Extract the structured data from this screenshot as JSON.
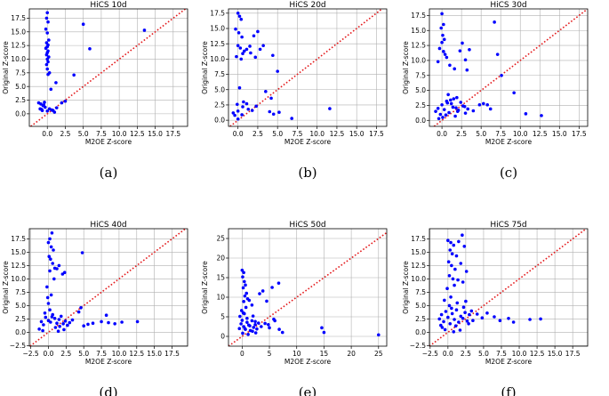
{
  "chart_data": [
    {
      "type": "scatter",
      "title": "HiCS 10d",
      "caption": "(a)",
      "xlabel": "M2OE Z-score",
      "ylabel": "Original Z-score",
      "xlim": [
        -2.5,
        19.5
      ],
      "ylim": [
        -2.3,
        19.2
      ],
      "xticks": [
        0.0,
        2.5,
        5.0,
        7.5,
        10.0,
        12.5,
        15.0,
        17.5
      ],
      "xtick_labels": [
        "0.0",
        "2.5",
        "5.0",
        "7.5",
        "10.0",
        "12.5",
        "15.0",
        "17.5"
      ],
      "yticks": [
        0.0,
        2.5,
        5.0,
        7.5,
        10.0,
        12.5,
        15.0,
        17.5
      ],
      "ytick_labels": [
        "0.0",
        "2.5",
        "5.0",
        "7.5",
        "10.0",
        "12.5",
        "15.0",
        "17.5"
      ],
      "grid": true,
      "reference_line": "y = x",
      "x": [
        0.0,
        -0.1,
        0.1,
        -0.2,
        0.0,
        0.2,
        -0.1,
        0.1,
        0.0,
        -0.2,
        0.1,
        0.0,
        -0.1,
        0.2,
        0.0,
        0.1,
        -0.1,
        0.0,
        0.3,
        0.1,
        0.5,
        1.2,
        3.7,
        5.0,
        5.9,
        13.5,
        -1.2,
        -0.9,
        -0.6,
        -0.4,
        -1.0,
        -0.7,
        -0.3,
        0.0,
        0.3,
        0.8,
        1.3,
        2.0,
        2.5,
        1.0,
        -0.8,
        -0.5,
        0.6
      ],
      "y": [
        18.5,
        17.5,
        16.8,
        15.5,
        14.8,
        13.5,
        13.0,
        12.6,
        12.3,
        12.0,
        11.5,
        11.2,
        10.8,
        10.4,
        10.0,
        9.5,
        9.0,
        8.2,
        7.5,
        7.2,
        4.5,
        5.7,
        7.1,
        16.4,
        11.9,
        15.3,
        2.0,
        1.8,
        1.5,
        2.1,
        0.9,
        0.6,
        1.2,
        0.5,
        0.9,
        0.6,
        1.1,
        2.0,
        2.3,
        0.3,
        0.8,
        1.6,
        0.7
      ]
    },
    {
      "type": "scatter",
      "title": "HiCS 20d",
      "caption": "(b)",
      "xlabel": "M2OE Z-score",
      "ylabel": "Original Z-score",
      "xlim": [
        -1.2,
        18.8
      ],
      "ylim": [
        -1.0,
        18.2
      ],
      "xticks": [
        0.0,
        2.5,
        5.0,
        7.5,
        10.0,
        12.5,
        15.0,
        17.5
      ],
      "xtick_labels": [
        "0.0",
        "2.5",
        "5.0",
        "7.5",
        "10.0",
        "12.5",
        "15.0",
        "17.5"
      ],
      "yticks": [
        0.0,
        2.5,
        5.0,
        7.5,
        10.0,
        12.5,
        15.0,
        17.5
      ],
      "ytick_labels": [
        "0.0",
        "2.5",
        "5.0",
        "7.5",
        "10.0",
        "12.5",
        "15.0",
        "17.5"
      ],
      "grid": true,
      "reference_line": "y = x",
      "x": [
        0.0,
        0.2,
        0.4,
        -0.3,
        0.1,
        0.5,
        0.0,
        0.3,
        1.1,
        1.5,
        2.0,
        2.5,
        3.2,
        4.4,
        5.0,
        0.6,
        -0.2,
        0.4,
        0.8,
        1.6,
        2.2,
        2.8,
        3.5,
        4.2,
        5.2,
        6.8,
        11.6,
        -0.6,
        -0.4,
        0.0,
        0.6,
        1.1,
        1.8,
        2.3,
        0.0,
        0.5,
        1.3,
        0.2,
        -0.1,
        0.7,
        4.0,
        4.5
      ],
      "y": [
        17.5,
        17.0,
        16.5,
        14.9,
        14.3,
        13.6,
        12.2,
        11.8,
        11.6,
        12.1,
        13.8,
        14.5,
        12.2,
        10.6,
        8.0,
        10.9,
        10.4,
        10.0,
        11.3,
        11.0,
        10.3,
        11.6,
        4.7,
        3.6,
        1.3,
        0.3,
        1.9,
        1.2,
        0.8,
        1.5,
        2.2,
        2.7,
        1.6,
        2.3,
        0.2,
        0.9,
        1.8,
        5.3,
        2.6,
        3.0,
        1.4,
        1.0
      ]
    },
    {
      "type": "scatter",
      "title": "HiCS 30d",
      "caption": "(c)",
      "xlabel": "M2OE Z-score",
      "ylabel": "Original Z-score",
      "xlim": [
        -1.6,
        18.6
      ],
      "ylim": [
        -1.0,
        18.6
      ],
      "xticks": [
        0.0,
        2.5,
        5.0,
        7.5,
        10.0,
        12.5,
        15.0,
        17.5
      ],
      "xtick_labels": [
        "0.0",
        "2.5",
        "5.0",
        "7.5",
        "10.0",
        "12.5",
        "15.0",
        "17.5"
      ],
      "yticks": [
        0.0,
        2.5,
        5.0,
        7.5,
        10.0,
        12.5,
        15.0,
        17.5
      ],
      "ytick_labels": [
        "0.0",
        "2.5",
        "5.0",
        "7.5",
        "10.0",
        "12.5",
        "15.0",
        "17.5"
      ],
      "grid": true,
      "reference_line": "y = x",
      "x": [
        0.0,
        0.2,
        -0.1,
        0.1,
        0.3,
        0.0,
        -0.3,
        0.2,
        0.4,
        -0.5,
        0.6,
        1.0,
        1.6,
        2.3,
        2.6,
        3.0,
        3.2,
        3.5,
        4.8,
        6.7,
        7.1,
        7.6,
        9.2,
        10.7,
        12.7,
        -0.8,
        -0.5,
        -0.2,
        0.0,
        0.3,
        0.6,
        0.9,
        1.2,
        1.5,
        1.8,
        2.1,
        2.4,
        2.7,
        3.0,
        3.3,
        0.1,
        0.5,
        0.8,
        1.1,
        1.4,
        1.7,
        2.0,
        5.3,
        5.8,
        6.2,
        -0.4,
        0.7,
        1.9,
        2.9,
        4.0
      ],
      "y": [
        17.8,
        16.0,
        15.4,
        14.2,
        13.5,
        13.0,
        12.0,
        11.5,
        11.0,
        9.8,
        10.5,
        9.2,
        8.6,
        11.6,
        12.9,
        10.1,
        8.4,
        11.8,
        2.6,
        16.4,
        11.0,
        7.5,
        4.6,
        1.1,
        0.8,
        1.5,
        2.0,
        1.0,
        2.6,
        1.8,
        3.2,
        1.3,
        2.8,
        3.6,
        2.1,
        1.7,
        3.0,
        2.4,
        1.2,
        1.9,
        0.5,
        0.9,
        4.3,
        3.4,
        2.2,
        0.7,
        1.5,
        2.8,
        2.6,
        1.9,
        0.3,
        2.9,
        3.8,
        2.3,
        1.6
      ]
    },
    {
      "type": "scatter",
      "title": "HiCS 40d",
      "caption": "(d)",
      "xlabel": "M2OE Z-score",
      "ylabel": "Original Z-score",
      "xlim": [
        -2.7,
        19.7
      ],
      "ylim": [
        -2.6,
        19.4
      ],
      "xticks": [
        -2.5,
        0.0,
        2.5,
        5.0,
        7.5,
        10.0,
        12.5,
        15.0,
        17.5
      ],
      "xtick_labels": [
        "−2.5",
        "0.0",
        "2.5",
        "5.0",
        "7.5",
        "10.0",
        "12.5",
        "15.0",
        "17.5"
      ],
      "yticks": [
        -2.5,
        0.0,
        2.5,
        5.0,
        7.5,
        10.0,
        12.5,
        15.0,
        17.5
      ],
      "ytick_labels": [
        "−2.5",
        "0.0",
        "2.5",
        "5.0",
        "7.5",
        "10.0",
        "12.5",
        "15.0",
        "17.5"
      ],
      "grid": true,
      "reference_line": "y = x",
      "x": [
        0.5,
        0.2,
        0.0,
        0.4,
        0.7,
        0.1,
        0.3,
        0.6,
        0.9,
        0.2,
        1.2,
        1.5,
        2.0,
        2.3,
        4.8,
        0.8,
        -0.2,
        -1.0,
        -0.7,
        -0.4,
        0.0,
        0.3,
        0.6,
        0.9,
        1.2,
        1.5,
        1.8,
        2.1,
        2.4,
        2.7,
        -0.5,
        0.2,
        0.5,
        1.0,
        1.6,
        2.2,
        3.0,
        4.3,
        5.6,
        6.3,
        7.5,
        8.5,
        9.4,
        10.4,
        12.6,
        -1.3,
        -0.8,
        1.4,
        3.4,
        4.6,
        5.0,
        8.2,
        -0.1,
        0.4,
        0.0
      ],
      "y": [
        18.6,
        17.5,
        16.8,
        16.0,
        15.4,
        14.2,
        13.7,
        12.9,
        12.0,
        11.5,
        11.9,
        12.5,
        10.9,
        11.2,
        14.9,
        10.0,
        8.5,
        2.0,
        1.4,
        2.8,
        2.2,
        1.9,
        3.3,
        2.6,
        1.7,
        2.4,
        3.0,
        1.6,
        2.1,
        1.3,
        3.6,
        4.2,
        2.9,
        0.9,
        1.1,
        0.5,
        1.8,
        3.8,
        1.5,
        1.7,
        2.0,
        1.8,
        1.6,
        1.9,
        2.0,
        0.6,
        0.3,
        0.2,
        2.3,
        4.6,
        1.2,
        3.2,
        6.5,
        7.0,
        5.4
      ]
    },
    {
      "type": "scatter",
      "title": "HiCS 50d",
      "caption": "(e)",
      "xlabel": "M2OE Z-score",
      "ylabel": "Original Z-score",
      "xlim": [
        -2.5,
        26.5
      ],
      "ylim": [
        -2.5,
        27.5
      ],
      "xticks": [
        0,
        5,
        10,
        15,
        20,
        25
      ],
      "xtick_labels": [
        "0",
        "5",
        "10",
        "15",
        "20",
        "25"
      ],
      "yticks": [
        0,
        5,
        10,
        15,
        20,
        25
      ],
      "ytick_labels": [
        "0",
        "5",
        "10",
        "15",
        "20",
        "25"
      ],
      "grid": true,
      "reference_line": "y = x",
      "x": [
        0.0,
        0.3,
        0.1,
        0.4,
        0.6,
        0.2,
        0.8,
        0.5,
        1.0,
        0.3,
        1.3,
        1.8,
        3.2,
        3.8,
        4.5,
        5.5,
        6.7,
        -0.5,
        -0.2,
        0.0,
        0.3,
        0.6,
        0.9,
        1.2,
        1.5,
        1.8,
        2.1,
        2.4,
        2.7,
        3.0,
        -0.4,
        0.1,
        0.5,
        0.9,
        1.4,
        1.9,
        2.4,
        3.5,
        4.2,
        5.0,
        6.0,
        6.8,
        7.4,
        14.6,
        15.0,
        25.0,
        -0.1,
        0.4,
        0.7,
        1.1,
        2.5,
        2.0,
        4.8,
        5.8,
        0.2
      ],
      "y": [
        16.9,
        16.3,
        15.2,
        14.0,
        13.1,
        12.4,
        11.0,
        10.3,
        9.6,
        8.9,
        9.2,
        8.0,
        10.9,
        11.6,
        9.0,
        12.5,
        13.6,
        2.0,
        3.2,
        4.1,
        2.5,
        1.8,
        3.6,
        2.9,
        1.5,
        4.0,
        2.3,
        3.0,
        1.9,
        3.4,
        5.1,
        0.8,
        2.0,
        4.6,
        2.7,
        1.3,
        3.8,
        2.5,
        3.3,
        2.2,
        4.0,
        1.8,
        1.0,
        2.2,
        1.0,
        0.4,
        6.6,
        5.8,
        7.4,
        0.5,
        0.9,
        5.2,
        3.0,
        4.4,
        6.0
      ]
    },
    {
      "type": "scatter",
      "title": "HiCS 75d",
      "caption": "(f)",
      "xlabel": "M2OE Z-score",
      "ylabel": "Original Z-score",
      "xlim": [
        -2.6,
        19.6
      ],
      "ylim": [
        -2.6,
        19.4
      ],
      "xticks": [
        -2.5,
        0.0,
        2.5,
        5.0,
        7.5,
        10.0,
        12.5,
        15.0,
        17.5
      ],
      "xtick_labels": [
        "−2.5",
        "0.0",
        "2.5",
        "5.0",
        "7.5",
        "10.0",
        "12.5",
        "15.0",
        "17.5"
      ],
      "yticks": [
        -2.5,
        0.0,
        2.5,
        5.0,
        7.5,
        10.0,
        12.5,
        15.0,
        17.5
      ],
      "ytick_labels": [
        "−2.5",
        "0.0",
        "2.5",
        "5.0",
        "7.5",
        "10.0",
        "12.5",
        "15.0",
        "17.5"
      ],
      "grid": true,
      "reference_line": "y = x",
      "x": [
        0.0,
        0.4,
        0.8,
        0.3,
        0.6,
        1.5,
        2.0,
        2.3,
        1.2,
        0.1,
        0.5,
        1.8,
        2.6,
        1.0,
        0.2,
        0.7,
        1.4,
        2.1,
        0.9,
        -0.1,
        -1.2,
        -0.9,
        -0.6,
        -0.3,
        0.0,
        0.3,
        0.6,
        0.9,
        1.2,
        1.5,
        1.8,
        2.1,
        2.4,
        2.7,
        3.0,
        -0.8,
        -0.4,
        0.2,
        0.5,
        1.1,
        1.7,
        2.2,
        2.9,
        3.5,
        4.1,
        4.8,
        5.5,
        6.5,
        7.3,
        8.5,
        9.2,
        11.5,
        13.0,
        -0.5,
        0.4,
        1.3,
        -1.0,
        0.8,
        2.5,
        3.3
      ],
      "y": [
        17.2,
        16.8,
        16.3,
        15.4,
        14.7,
        17.0,
        18.2,
        16.1,
        14.3,
        13.2,
        12.5,
        12.9,
        11.4,
        11.8,
        10.6,
        10.0,
        9.8,
        9.4,
        8.8,
        8.2,
        2.5,
        3.3,
        2.0,
        3.9,
        2.8,
        1.6,
        3.5,
        2.4,
        4.2,
        1.9,
        3.0,
        2.6,
        3.7,
        2.1,
        3.3,
        0.9,
        0.5,
        5.0,
        4.5,
        1.2,
        0.4,
        4.7,
        1.6,
        2.2,
        3.4,
        2.7,
        3.6,
        2.9,
        2.2,
        2.6,
        1.9,
        2.4,
        2.5,
        6.0,
        6.6,
        5.5,
        1.3,
        0.1,
        5.8,
        4.0
      ]
    }
  ]
}
